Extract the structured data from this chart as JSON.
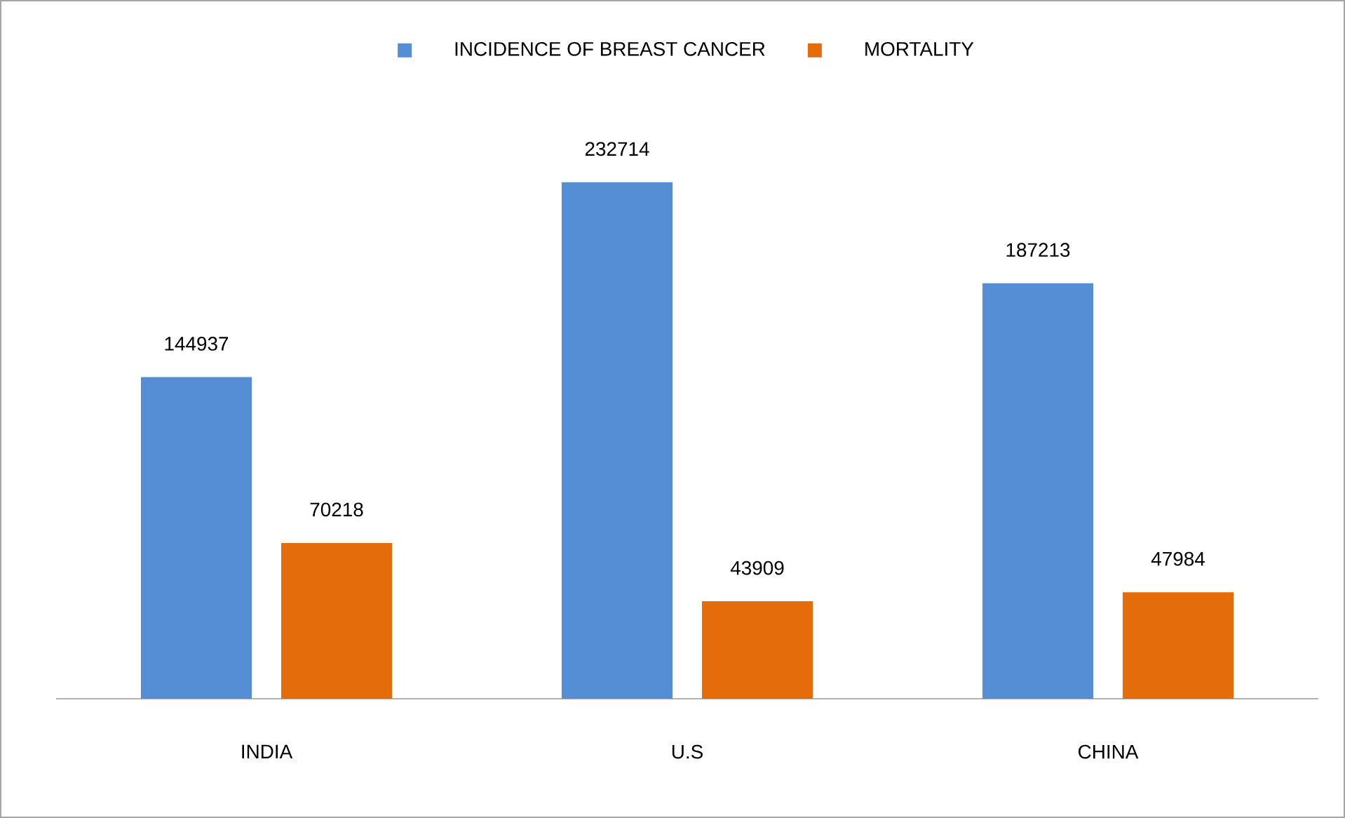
{
  "chart_data": {
    "type": "bar",
    "categories": [
      "INDIA",
      "U.S",
      "CHINA"
    ],
    "series": [
      {
        "name": "INCIDENCE OF BREAST CANCER",
        "color": "#558ed5",
        "values": [
          144937,
          232714,
          187213
        ]
      },
      {
        "name": "MORTALITY",
        "color": "#e46c0a",
        "values": [
          70218,
          43909,
          47984
        ]
      }
    ],
    "data_labels": true,
    "legend": "top"
  }
}
